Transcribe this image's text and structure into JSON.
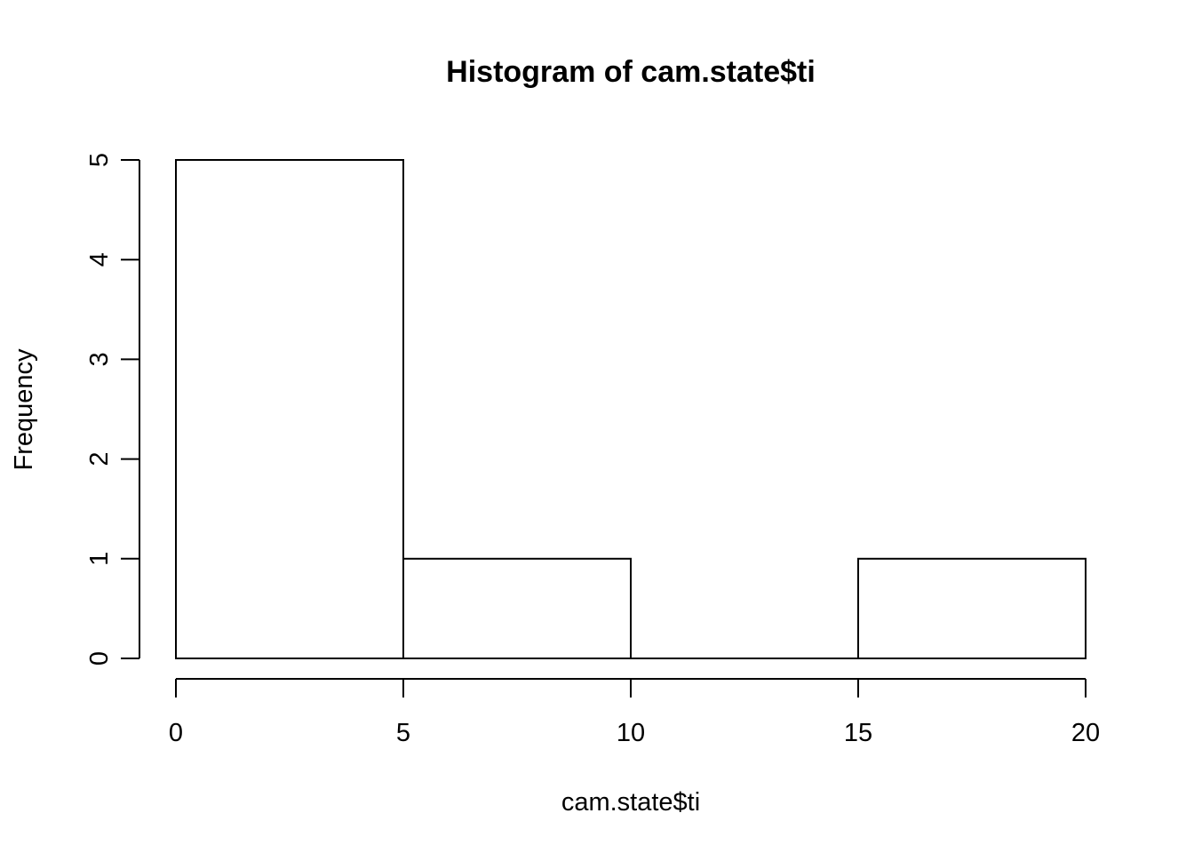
{
  "chart_data": {
    "type": "bar",
    "title": "Histogram of cam.state$ti",
    "xlabel": "cam.state$ti",
    "ylabel": "Frequency",
    "bins": [
      {
        "start": 0,
        "end": 5,
        "count": 5
      },
      {
        "start": 5,
        "end": 10,
        "count": 1
      },
      {
        "start": 10,
        "end": 15,
        "count": 0
      },
      {
        "start": 15,
        "end": 20,
        "count": 1
      }
    ],
    "x_ticks": [
      "0",
      "5",
      "10",
      "15",
      "20"
    ],
    "y_ticks": [
      "0",
      "1",
      "2",
      "3",
      "4",
      "5"
    ],
    "xlim": [
      0,
      20
    ],
    "ylim": [
      0,
      5
    ],
    "grid": false,
    "colors": {
      "bar_fill": "#ffffff",
      "bar_stroke": "#000000"
    }
  }
}
